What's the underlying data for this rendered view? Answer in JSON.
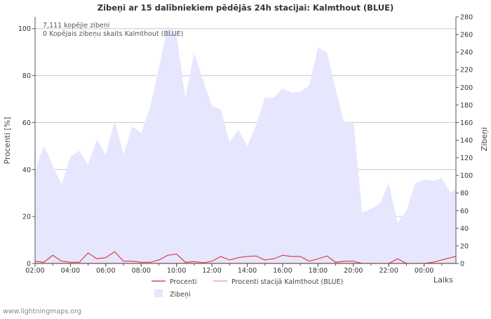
{
  "chart_data": {
    "type": "area",
    "title": "Zibeņi ar 15 dalībniekiem pēdējās 24h stacijai: Kalmthout (BLUE)",
    "xlabel": "Laiks",
    "ylabel_left": "Procenti  [%]",
    "ylabel_right": "Zibeņi",
    "ylim_left": [
      0,
      105
    ],
    "ylim_right": [
      0,
      280
    ],
    "y_ticks_left": [
      0,
      20,
      40,
      60,
      80,
      100
    ],
    "y_ticks_right": [
      0,
      20,
      40,
      60,
      80,
      100,
      120,
      140,
      160,
      180,
      200,
      220,
      240,
      260,
      280
    ],
    "x_range_hours": [
      0,
      23.8
    ],
    "x_ticks": [
      {
        "label": "02:00",
        "h": 0
      },
      {
        "label": "04:00",
        "h": 2
      },
      {
        "label": "06:00",
        "h": 4
      },
      {
        "label": "08:00",
        "h": 6
      },
      {
        "label": "10:00",
        "h": 8
      },
      {
        "label": "12:00",
        "h": 10
      },
      {
        "label": "14:00",
        "h": 12
      },
      {
        "label": "16:00",
        "h": 14
      },
      {
        "label": "18:00",
        "h": 16
      },
      {
        "label": "20:00",
        "h": 18
      },
      {
        "label": "22:00",
        "h": 20
      },
      {
        "label": "00:00",
        "h": 22
      }
    ],
    "annotations": [
      "7,111 kopējie zibeņi",
      "0 Kopējais zibeņu skaits Kalmthout (BLUE)"
    ],
    "legend": [
      {
        "label": "Procenti",
        "color": "#dd2222",
        "kind": "line"
      },
      {
        "label": "Procenti stacijā Kalmthout (BLUE)",
        "color": "#f09090",
        "kind": "line"
      },
      {
        "label": "Zibeņi",
        "color": "#e6e6ff",
        "kind": "area"
      }
    ],
    "series": [
      {
        "name": "Zibeņi",
        "axis": "right",
        "color": "#e6e6ff",
        "x": [
          0,
          0.5,
          1,
          1.5,
          2,
          2.5,
          3,
          3.5,
          4,
          4.5,
          5,
          5.5,
          6,
          6.5,
          7,
          7.5,
          8,
          8.5,
          9,
          9.5,
          10,
          10.5,
          11,
          11.5,
          12,
          12.5,
          13,
          13.5,
          14,
          14.5,
          15,
          15.5,
          16,
          16.5,
          17,
          17.5,
          18,
          18.5,
          19,
          19.5,
          20,
          20.5,
          21,
          21.5,
          22,
          22.5,
          23,
          23.5,
          23.8
        ],
        "values": [
          105,
          134,
          111,
          90,
          121,
          128,
          112,
          141,
          123,
          163,
          124,
          156,
          148,
          177,
          222,
          270,
          259,
          188,
          239,
          208,
          179,
          175,
          138,
          152,
          133,
          157,
          188,
          188,
          199,
          194,
          195,
          202,
          245,
          240,
          198,
          158,
          162,
          58,
          62,
          68,
          91,
          46,
          60,
          91,
          95,
          94,
          97,
          80,
          85
        ]
      },
      {
        "name": "Procenti",
        "axis": "left",
        "color": "#dd2222",
        "x": [
          0,
          0.5,
          1,
          1.5,
          2,
          2.5,
          3,
          3.5,
          4,
          4.5,
          5,
          5.5,
          6,
          6.5,
          7,
          7.5,
          8,
          8.5,
          9,
          9.5,
          10,
          10.5,
          11,
          11.5,
          12,
          12.5,
          13,
          13.5,
          14,
          14.5,
          15,
          15.5,
          16,
          16.5,
          17,
          17.5,
          18,
          18.5,
          19,
          19.5,
          20,
          20.5,
          21,
          21.5,
          22,
          22.5,
          23,
          23.5,
          23.8
        ],
        "values": [
          1,
          0.5,
          3.5,
          1,
          0.5,
          0.5,
          4.5,
          2,
          2.5,
          5,
          1,
          1,
          0.5,
          0.5,
          1.5,
          3.5,
          4,
          0.5,
          0.8,
          0.3,
          1,
          3,
          1.5,
          2.5,
          3,
          3.2,
          1.5,
          2,
          3.5,
          3,
          3,
          1,
          2,
          3.2,
          0.5,
          1,
          1,
          0,
          0,
          0,
          0,
          2,
          0,
          0,
          0,
          0.5,
          1.5,
          2.5,
          3
        ]
      },
      {
        "name": "Procenti stacijā Kalmthout (BLUE)",
        "axis": "left",
        "color": "#f09090",
        "x": [
          0,
          23.8
        ],
        "values": [
          0,
          0
        ]
      }
    ]
  },
  "footer": {
    "credit": "www.lightningmaps.org"
  }
}
